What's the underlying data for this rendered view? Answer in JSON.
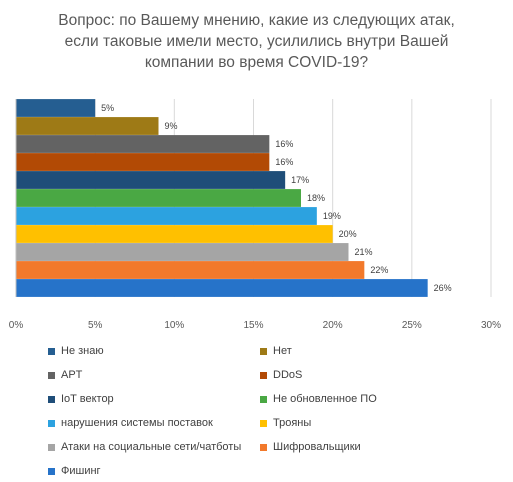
{
  "title_lines": [
    "Вопрос: по Вашему мнению, какие из следующих атак,",
    "если таковые имели место, усилились внутри Вашей",
    "компании во время COVID-19?"
  ],
  "chart_data": {
    "type": "bar",
    "orientation": "horizontal",
    "title": "Вопрос: по Вашему мнению, какие из следующих атак, если таковые имели место, усилились внутри Вашей компании во время COVID-19?",
    "xlabel": "",
    "ylabel": "",
    "xlim": [
      0,
      30
    ],
    "x_ticks": [
      "0%",
      "5%",
      "10%",
      "15%",
      "20%",
      "25%",
      "30%"
    ],
    "grid": true,
    "legend_position": "bottom",
    "series": [
      {
        "name": "Не знаю",
        "value": 5,
        "label": "5%",
        "color": "#255e91"
      },
      {
        "name": "Нет",
        "value": 9,
        "label": "9%",
        "color": "#9e7a16"
      },
      {
        "name": "APT",
        "value": 16,
        "label": "16%",
        "color": "#636363"
      },
      {
        "name": "DDoS",
        "value": 16,
        "label": "16%",
        "color": "#b24a05"
      },
      {
        "name": "IoT вектор",
        "value": 17,
        "label": "17%",
        "color": "#1f4e79"
      },
      {
        "name": "Не обновленное ПО",
        "value": 18,
        "label": "18%",
        "color": "#4aa844"
      },
      {
        "name": "нарушения системы поставок",
        "value": 19,
        "label": "19%",
        "color": "#2ca2e0"
      },
      {
        "name": "Трояны",
        "value": 20,
        "label": "20%",
        "color": "#ffc000"
      },
      {
        "name": "Атаки на социальные сети/чатботы",
        "value": 21,
        "label": "21%",
        "color": "#a5a5a5"
      },
      {
        "name": "Шифровальщики",
        "value": 22,
        "label": "22%",
        "color": "#f2792b"
      },
      {
        "name": "Фишинг",
        "value": 26,
        "label": "26%",
        "color": "#2673c9"
      }
    ]
  }
}
